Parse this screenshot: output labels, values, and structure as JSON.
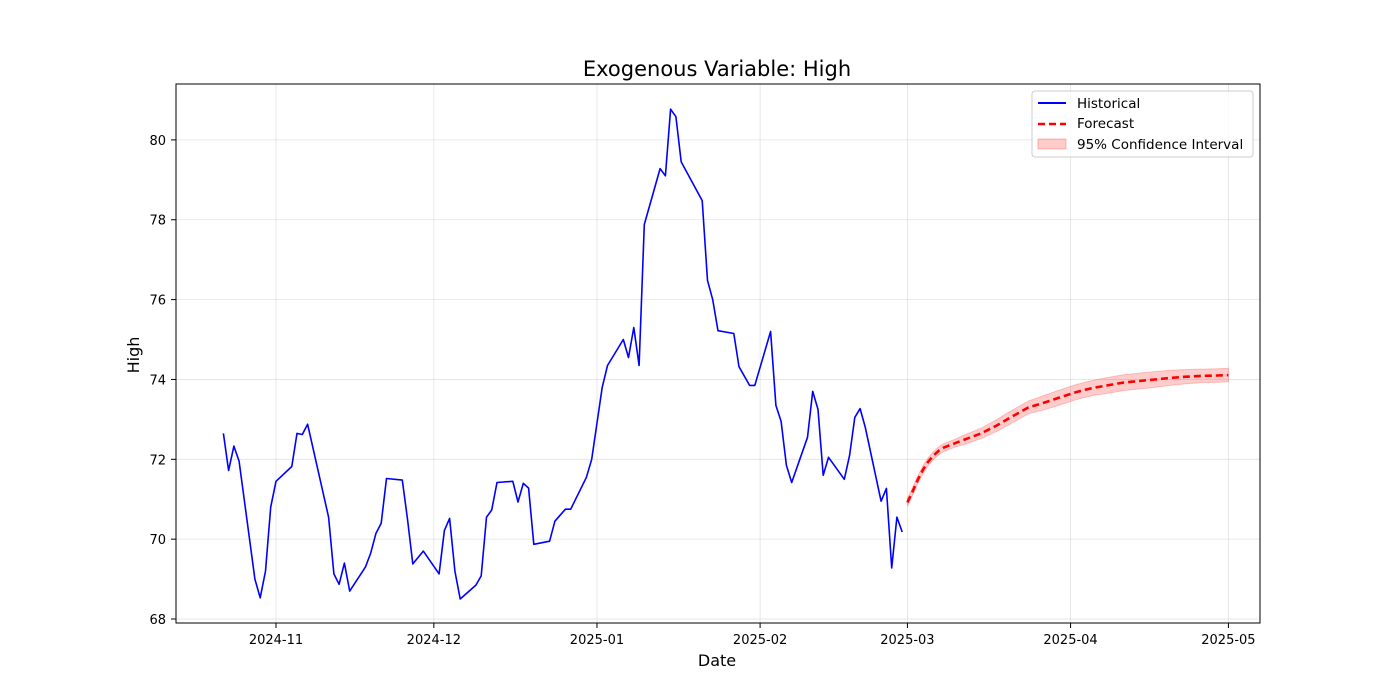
{
  "chart_data": {
    "type": "line",
    "title": "Exogenous Variable: High",
    "xlabel": "Date",
    "ylabel": "High",
    "xlim": [
      "2024-10-13",
      "2025-05-07"
    ],
    "ylim": [
      67.9,
      81.4
    ],
    "x_ticks": [
      "2024-11-01",
      "2024-12-01",
      "2025-01-01",
      "2025-02-01",
      "2025-03-01",
      "2025-04-01",
      "2025-05-01"
    ],
    "x_tick_labels": [
      "2024-11",
      "2024-12",
      "2025-01",
      "2025-02",
      "2025-03",
      "2025-04",
      "2025-05"
    ],
    "y_ticks": [
      68,
      70,
      72,
      74,
      76,
      78,
      80
    ],
    "y_tick_labels": [
      "68",
      "70",
      "72",
      "74",
      "76",
      "78",
      "80"
    ],
    "grid": true,
    "legend_position": "top-right",
    "series": [
      {
        "name": "Historical",
        "style": "solid",
        "color": "#0000ff",
        "points": [
          [
            "2024-10-22",
            72.65
          ],
          [
            "2024-10-23",
            71.72
          ],
          [
            "2024-10-24",
            72.33
          ],
          [
            "2024-10-25",
            71.95
          ],
          [
            "2024-10-28",
            69.0
          ],
          [
            "2024-10-29",
            68.53
          ],
          [
            "2024-10-30",
            69.2
          ],
          [
            "2024-10-31",
            70.8
          ],
          [
            "2024-11-01",
            71.45
          ],
          [
            "2024-11-04",
            71.82
          ],
          [
            "2024-11-05",
            72.65
          ],
          [
            "2024-11-06",
            72.62
          ],
          [
            "2024-11-07",
            72.88
          ],
          [
            "2024-11-11",
            70.55
          ],
          [
            "2024-11-12",
            69.13
          ],
          [
            "2024-11-13",
            68.87
          ],
          [
            "2024-11-14",
            69.4
          ],
          [
            "2024-11-15",
            68.7
          ],
          [
            "2024-11-18",
            69.3
          ],
          [
            "2024-11-19",
            69.65
          ],
          [
            "2024-11-20",
            70.15
          ],
          [
            "2024-11-21",
            70.4
          ],
          [
            "2024-11-22",
            71.52
          ],
          [
            "2024-11-25",
            71.48
          ],
          [
            "2024-11-26",
            70.5
          ],
          [
            "2024-11-27",
            69.38
          ],
          [
            "2024-11-29",
            69.7
          ],
          [
            "2024-12-02",
            69.13
          ],
          [
            "2024-12-03",
            70.22
          ],
          [
            "2024-12-04",
            70.52
          ],
          [
            "2024-12-05",
            69.2
          ],
          [
            "2024-12-06",
            68.5
          ],
          [
            "2024-12-09",
            68.85
          ],
          [
            "2024-12-10",
            69.08
          ],
          [
            "2024-12-11",
            70.55
          ],
          [
            "2024-12-12",
            70.73
          ],
          [
            "2024-12-13",
            71.42
          ],
          [
            "2024-12-16",
            71.45
          ],
          [
            "2024-12-17",
            70.93
          ],
          [
            "2024-12-18",
            71.4
          ],
          [
            "2024-12-19",
            71.28
          ],
          [
            "2024-12-20",
            69.87
          ],
          [
            "2024-12-23",
            69.95
          ],
          [
            "2024-12-24",
            70.45
          ],
          [
            "2024-12-26",
            70.75
          ],
          [
            "2024-12-27",
            70.75
          ],
          [
            "2024-12-30",
            71.55
          ],
          [
            "2024-12-31",
            72.0
          ],
          [
            "2025-01-02",
            73.8
          ],
          [
            "2025-01-03",
            74.35
          ],
          [
            "2025-01-06",
            75.0
          ],
          [
            "2025-01-07",
            74.55
          ],
          [
            "2025-01-08",
            75.3
          ],
          [
            "2025-01-09",
            74.35
          ],
          [
            "2025-01-10",
            77.88
          ],
          [
            "2025-01-13",
            79.28
          ],
          [
            "2025-01-14",
            79.1
          ],
          [
            "2025-01-15",
            80.77
          ],
          [
            "2025-01-16",
            80.58
          ],
          [
            "2025-01-17",
            79.45
          ],
          [
            "2025-01-21",
            78.48
          ],
          [
            "2025-01-22",
            76.48
          ],
          [
            "2025-01-23",
            76.0
          ],
          [
            "2025-01-24",
            75.22
          ],
          [
            "2025-01-27",
            75.15
          ],
          [
            "2025-01-28",
            74.32
          ],
          [
            "2025-01-30",
            73.85
          ],
          [
            "2025-01-31",
            73.85
          ],
          [
            "2025-02-03",
            75.2
          ],
          [
            "2025-02-04",
            73.35
          ],
          [
            "2025-02-05",
            72.95
          ],
          [
            "2025-02-06",
            71.85
          ],
          [
            "2025-02-07",
            71.42
          ],
          [
            "2025-02-10",
            72.55
          ],
          [
            "2025-02-11",
            73.7
          ],
          [
            "2025-02-12",
            73.25
          ],
          [
            "2025-02-13",
            71.6
          ],
          [
            "2025-02-14",
            72.05
          ],
          [
            "2025-02-17",
            71.5
          ],
          [
            "2025-02-18",
            72.1
          ],
          [
            "2025-02-19",
            73.05
          ],
          [
            "2025-02-20",
            73.27
          ],
          [
            "2025-02-21",
            72.8
          ],
          [
            "2025-02-24",
            70.95
          ],
          [
            "2025-02-25",
            71.27
          ],
          [
            "2025-02-26",
            69.28
          ],
          [
            "2025-02-27",
            70.55
          ],
          [
            "2025-02-28",
            70.18
          ]
        ]
      },
      {
        "name": "Forecast",
        "style": "dashed",
        "color": "#ff0000",
        "points": [
          [
            "2025-03-01",
            70.92
          ],
          [
            "2025-03-02",
            71.2
          ],
          [
            "2025-03-03",
            71.5
          ],
          [
            "2025-03-04",
            71.75
          ],
          [
            "2025-03-05",
            71.95
          ],
          [
            "2025-03-06",
            72.1
          ],
          [
            "2025-03-07",
            72.22
          ],
          [
            "2025-03-08",
            72.3
          ],
          [
            "2025-03-10",
            72.4
          ],
          [
            "2025-03-12",
            72.5
          ],
          [
            "2025-03-15",
            72.65
          ],
          [
            "2025-03-18",
            72.85
          ],
          [
            "2025-03-21",
            73.08
          ],
          [
            "2025-03-24",
            73.3
          ],
          [
            "2025-03-27",
            73.42
          ],
          [
            "2025-03-30",
            73.55
          ],
          [
            "2025-04-02",
            73.68
          ],
          [
            "2025-04-05",
            73.78
          ],
          [
            "2025-04-08",
            73.85
          ],
          [
            "2025-04-11",
            73.92
          ],
          [
            "2025-04-14",
            73.96
          ],
          [
            "2025-04-17",
            74.0
          ],
          [
            "2025-04-20",
            74.04
          ],
          [
            "2025-04-23",
            74.07
          ],
          [
            "2025-04-26",
            74.09
          ],
          [
            "2025-04-29",
            74.1
          ],
          [
            "2025-05-01",
            74.11
          ]
        ]
      }
    ],
    "confidence_interval": {
      "name": "95% Confidence Interval",
      "color": "#ff0000",
      "opacity": 0.2,
      "upper": [
        [
          "2025-03-01",
          71.02
        ],
        [
          "2025-03-02",
          71.3
        ],
        [
          "2025-03-03",
          71.6
        ],
        [
          "2025-03-04",
          71.85
        ],
        [
          "2025-03-05",
          72.05
        ],
        [
          "2025-03-06",
          72.2
        ],
        [
          "2025-03-07",
          72.32
        ],
        [
          "2025-03-08",
          72.4
        ],
        [
          "2025-03-10",
          72.5
        ],
        [
          "2025-03-12",
          72.62
        ],
        [
          "2025-03-15",
          72.78
        ],
        [
          "2025-03-18",
          73.0
        ],
        [
          "2025-03-21",
          73.24
        ],
        [
          "2025-03-24",
          73.46
        ],
        [
          "2025-03-27",
          73.6
        ],
        [
          "2025-03-30",
          73.74
        ],
        [
          "2025-04-02",
          73.87
        ],
        [
          "2025-04-05",
          73.97
        ],
        [
          "2025-04-08",
          74.05
        ],
        [
          "2025-04-11",
          74.12
        ],
        [
          "2025-04-14",
          74.16
        ],
        [
          "2025-04-17",
          74.2
        ],
        [
          "2025-04-20",
          74.23
        ],
        [
          "2025-04-23",
          74.25
        ],
        [
          "2025-04-26",
          74.26
        ],
        [
          "2025-04-29",
          74.27
        ],
        [
          "2025-05-01",
          74.28
        ]
      ],
      "lower": [
        [
          "2025-03-01",
          70.82
        ],
        [
          "2025-03-02",
          71.1
        ],
        [
          "2025-03-03",
          71.4
        ],
        [
          "2025-03-04",
          71.65
        ],
        [
          "2025-03-05",
          71.85
        ],
        [
          "2025-03-06",
          72.0
        ],
        [
          "2025-03-07",
          72.12
        ],
        [
          "2025-03-08",
          72.2
        ],
        [
          "2025-03-10",
          72.3
        ],
        [
          "2025-03-12",
          72.38
        ],
        [
          "2025-03-15",
          72.52
        ],
        [
          "2025-03-18",
          72.7
        ],
        [
          "2025-03-21",
          72.92
        ],
        [
          "2025-03-24",
          73.14
        ],
        [
          "2025-03-27",
          73.24
        ],
        [
          "2025-03-30",
          73.36
        ],
        [
          "2025-04-02",
          73.49
        ],
        [
          "2025-04-05",
          73.59
        ],
        [
          "2025-04-08",
          73.65
        ],
        [
          "2025-04-11",
          73.72
        ],
        [
          "2025-04-14",
          73.76
        ],
        [
          "2025-04-17",
          73.8
        ],
        [
          "2025-04-20",
          73.85
        ],
        [
          "2025-04-23",
          73.89
        ],
        [
          "2025-04-26",
          73.92
        ],
        [
          "2025-04-29",
          73.93
        ],
        [
          "2025-05-01",
          73.94
        ]
      ]
    }
  }
}
